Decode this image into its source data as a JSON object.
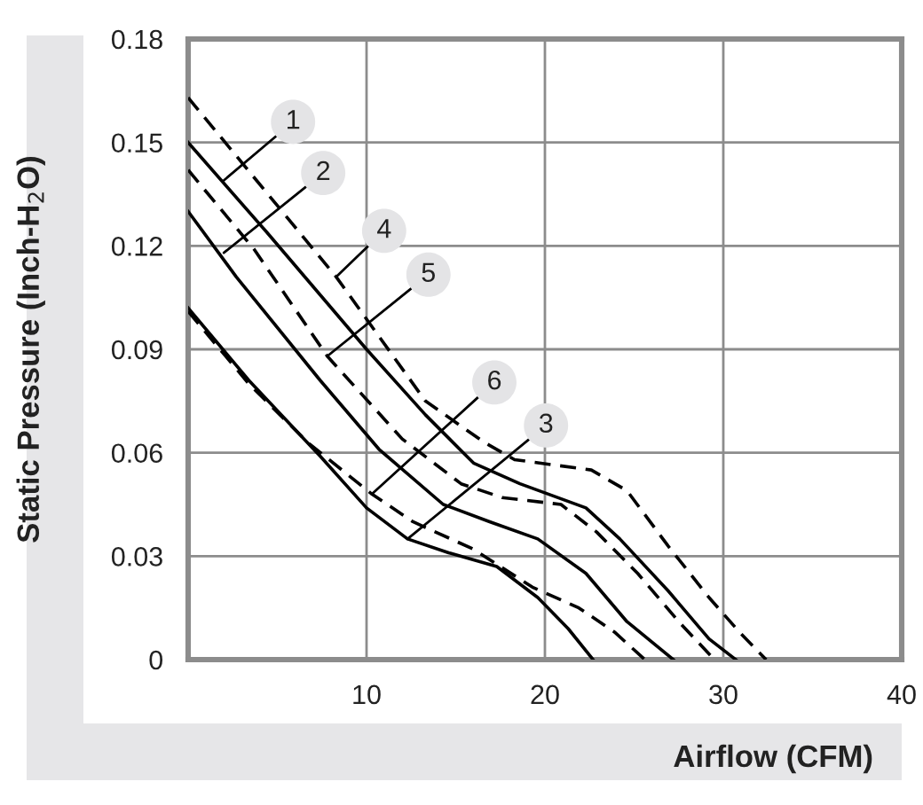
{
  "chart_data": {
    "type": "line",
    "xlabel": "Airflow (CFM)",
    "ylabel": "Static Pressure (Inch-H$_{2}$O)",
    "xlim": [
      0,
      40
    ],
    "xticks": [
      10,
      20,
      30,
      40
    ],
    "ylim": [
      0,
      0.18
    ],
    "yticks": [
      0,
      0.03,
      0.06,
      0.09,
      0.12,
      0.15,
      0.18
    ],
    "grid": true,
    "legend": false,
    "marker": "none",
    "series": [
      {
        "color": "#000000",
        "line_style": "solid",
        "x": [
          0,
          4.4,
          10,
          13.3,
          16,
          18.6,
          22.3,
          24.2,
          26.9,
          29.2,
          30.7
        ],
        "values": [
          0.15,
          0.124,
          0.09,
          0.071,
          0.057,
          0.051,
          0.044,
          0.035,
          0.02,
          0.006,
          0
        ]
      },
      {
        "color": "#000000",
        "line_style": "solid",
        "x": [
          0,
          2.7,
          7.4,
          10.7,
          14.3,
          16.9,
          19.6,
          22.3,
          24.6,
          27.2
        ],
        "values": [
          0.13,
          0.111,
          0.081,
          0.061,
          0.045,
          0.04,
          0.035,
          0.025,
          0.011,
          0
        ]
      },
      {
        "color": "#000000",
        "line_style": "solid",
        "x": [
          0,
          3.4,
          7.4,
          10,
          12.3,
          14.6,
          17.3,
          19.6,
          21.3,
          22.7
        ],
        "values": [
          0.102,
          0.081,
          0.059,
          0.044,
          0.035,
          0.031,
          0.027,
          0.018,
          0.009,
          0
        ]
      },
      {
        "color": "#000000",
        "line_style": "dashed",
        "x": [
          0,
          8.3,
          13.3,
          16.6,
          18.3,
          22.6,
          24.6,
          26.9,
          29.2,
          30.9,
          32.4
        ],
        "values": [
          0.163,
          0.111,
          0.075,
          0.063,
          0.058,
          0.055,
          0.049,
          0.033,
          0.018,
          0.008,
          0
        ]
      },
      {
        "color": "#000000",
        "line_style": "dashed",
        "x": [
          0,
          3.7,
          7.8,
          12,
          15.3,
          17.6,
          20.9,
          22.9,
          25.2,
          27.5,
          29.5
        ],
        "values": [
          0.142,
          0.119,
          0.088,
          0.064,
          0.051,
          0.047,
          0.045,
          0.037,
          0.025,
          0.011,
          0
        ]
      },
      {
        "color": "#000000",
        "line_style": "dashed",
        "x": [
          0,
          3.4,
          6.7,
          10.3,
          12.6,
          16,
          19.3,
          21.9,
          23.9,
          25.6
        ],
        "values": [
          0.101,
          0.08,
          0.063,
          0.048,
          0.04,
          0.032,
          0.021,
          0.015,
          0.008,
          0
        ]
      }
    ],
    "annotations": [
      {
        "text": "1",
        "x": 2,
        "y": 0.139
      },
      {
        "text": "2",
        "x": 2,
        "y": 0.118
      },
      {
        "text": "4",
        "x": 8.3,
        "y": 0.111
      },
      {
        "text": "5",
        "x": 7.8,
        "y": 0.088
      },
      {
        "text": "6",
        "x": 10.3,
        "y": 0.048
      },
      {
        "text": "3",
        "x": 12.3,
        "y": 0.035
      }
    ]
  }
}
